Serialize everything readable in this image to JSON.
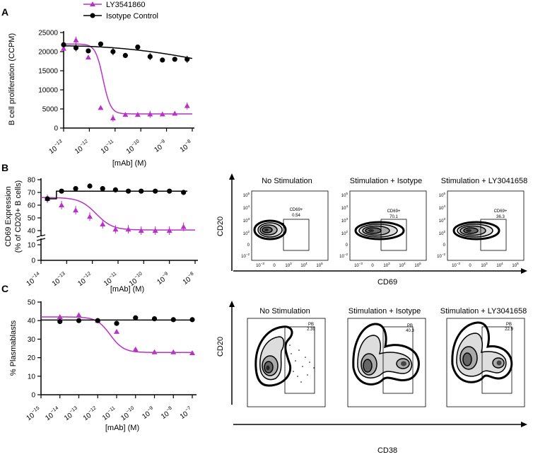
{
  "colors": {
    "drug": "#b832c8",
    "control": "#000000"
  },
  "legend": {
    "drug": "LY3541860",
    "control": "Isotype Control"
  },
  "panels": {
    "A": {
      "letter": "A",
      "ylabel": "B cell proliferation (CCPM)",
      "xlabel": "[mAb] (M)",
      "yticks": [
        "0",
        "5000",
        "10000",
        "15000",
        "20000",
        "25000"
      ],
      "xticks": [
        "-13",
        "-12",
        "-11",
        "-10",
        "-9",
        "-8"
      ]
    },
    "B": {
      "letter": "B",
      "ylabel1": "CD69 Expression",
      "ylabel2": "(% of CD20+ B cells)",
      "xlabel": "[mAb] (M)",
      "yticks": [
        "0",
        "10",
        "40",
        "50",
        "60",
        "70",
        "80"
      ],
      "xticks": [
        "-14",
        "-13",
        "-12",
        "-11",
        "-10",
        "-9",
        "-8"
      ],
      "flow": {
        "titles": [
          "No Stimulation",
          "Stimulation + Isotype",
          "Stimulation + LY3041658"
        ],
        "gate_name": "CD69+",
        "gate_values": [
          "0.54",
          "70.1",
          "36.3"
        ],
        "xaxis": "CD69",
        "yaxis": "CD20",
        "yticks": [
          "5",
          "4",
          "3",
          "2",
          "0",
          "-2"
        ],
        "xticks": [
          "-3",
          "0",
          "3",
          "4",
          "5"
        ]
      }
    },
    "C": {
      "letter": "C",
      "ylabel": "% Plasmablasts",
      "xlabel": "[mAb] (M)",
      "yticks": [
        "0",
        "10",
        "20",
        "30",
        "40",
        "50"
      ],
      "xticks": [
        "-15",
        "-14",
        "-13",
        "-12",
        "-11",
        "-10",
        "-9",
        "-8",
        "-7"
      ],
      "flow": {
        "titles": [
          "No Stimulation",
          "Stimulation + Isotype",
          "Stimulation + LY3041658"
        ],
        "gate_name": "PB",
        "gate_values": [
          "2.39",
          "40.3",
          "22.9"
        ],
        "xaxis": "CD38",
        "yaxis": "CD20"
      }
    }
  },
  "chart_data": [
    {
      "type": "scatter",
      "panel": "A",
      "ylabel": "B cell proliferation (CCPM)",
      "xlabel": "[mAb] (M)",
      "xscale": "log10",
      "xlim": [
        -13,
        -8
      ],
      "ylim": [
        0,
        25000
      ],
      "series": [
        {
          "name": "LY3541860",
          "marker": "triangle",
          "x": [
            -13,
            -12.52,
            -12.04,
            -11.56,
            -11.08,
            -10.6,
            -10.12,
            -9.64,
            -9.16,
            -8.68,
            -8.2
          ],
          "y": [
            20800,
            23000,
            18500,
            5300,
            2600,
            3500,
            3500,
            3600,
            3600,
            3800,
            5800
          ]
        },
        {
          "name": "Isotype Control",
          "marker": "circle",
          "x": [
            -13,
            -12.52,
            -12.04,
            -11.56,
            -11.08,
            -10.6,
            -10.12,
            -9.64,
            -9.16,
            -8.68,
            -8.2
          ],
          "y": [
            21800,
            21000,
            20200,
            22000,
            20000,
            19000,
            21200,
            18700,
            17800,
            18000,
            18000
          ]
        }
      ]
    },
    {
      "type": "scatter",
      "panel": "B",
      "ylabel": "CD69 Expression (% of CD20+ B cells)",
      "xlabel": "[mAb] (M)",
      "xscale": "log10",
      "xlim": [
        -14,
        -8
      ],
      "ylim": [
        0,
        80
      ],
      "series": [
        {
          "name": "LY3541860",
          "marker": "triangle",
          "x": [
            -13.75,
            -13.2,
            -12.65,
            -12.1,
            -11.6,
            -11.1,
            -10.6,
            -10.1,
            -9.55,
            -9.0,
            -8.45
          ],
          "y": [
            65,
            60,
            56,
            51,
            45,
            41,
            41,
            40,
            40,
            40,
            43
          ]
        },
        {
          "name": "Isotype Control",
          "marker": "circle",
          "x": [
            -13.75,
            -13.2,
            -12.65,
            -12.1,
            -11.6,
            -11.1,
            -10.6,
            -10.1,
            -9.55,
            -9.0,
            -8.45
          ],
          "y": [
            65,
            71,
            73,
            75,
            73,
            72,
            71,
            71,
            71,
            71,
            70
          ]
        }
      ]
    },
    {
      "type": "scatter",
      "panel": "C",
      "ylabel": "% Plasmablasts",
      "xlabel": "[mAb] (M)",
      "xscale": "log10",
      "xlim": [
        -15,
        -7
      ],
      "ylim": [
        0,
        50
      ],
      "series": [
        {
          "name": "LY3541860",
          "marker": "triangle",
          "x": [
            -14,
            -13,
            -12,
            -11,
            -10,
            -9,
            -8,
            -7
          ],
          "y": [
            42,
            43,
            40,
            34,
            24.5,
            23,
            23,
            22.5
          ]
        },
        {
          "name": "Isotype Control",
          "marker": "circle",
          "x": [
            -14,
            -13,
            -12,
            -11,
            -10,
            -9,
            -8,
            -7
          ],
          "y": [
            39.5,
            40,
            40,
            38.5,
            41.5,
            41,
            40.5,
            40.5
          ]
        }
      ]
    }
  ]
}
